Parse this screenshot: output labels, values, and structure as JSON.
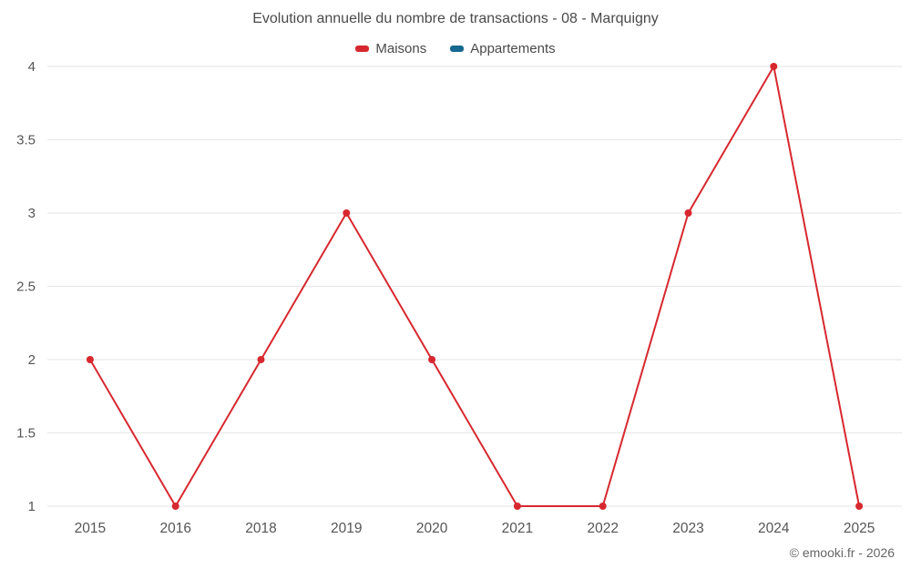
{
  "header": {
    "title": "Evolution annuelle du nombre de transactions - 08 - Marquigny"
  },
  "legend": {
    "items": [
      {
        "label": "Maisons",
        "color": "#d7282f"
      },
      {
        "label": "Appartements",
        "color": "#15688f"
      }
    ]
  },
  "footer": {
    "copyright": "© emooki.fr - 2026"
  },
  "colors": {
    "grid": "#e6e6e6",
    "axis_text": "#555555",
    "background": "#ffffff"
  },
  "chart_data": {
    "type": "line",
    "title": "Evolution annuelle du nombre de transactions - 08 - Marquigny",
    "categories": [
      "2015",
      "2016",
      "2018",
      "2019",
      "2020",
      "2021",
      "2022",
      "2023",
      "2024",
      "2025"
    ],
    "series": [
      {
        "name": "Maisons",
        "color": "#d7282f",
        "values": [
          2,
          1,
          2,
          3,
          2,
          1,
          1,
          3,
          4,
          1
        ]
      },
      {
        "name": "Appartements",
        "color": "#15688f",
        "values": []
      }
    ],
    "xlabel": "",
    "ylabel": "",
    "ylim": [
      1,
      4
    ],
    "yticks": [
      1,
      1.5,
      2,
      2.5,
      3,
      3.5,
      4
    ],
    "grid": "horizontal",
    "legend_position": "top",
    "marker_radius": 4,
    "line_width": 2
  }
}
